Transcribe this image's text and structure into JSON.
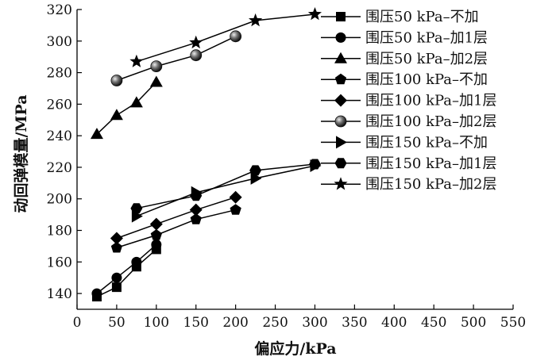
{
  "chart_data": {
    "type": "line",
    "title": "",
    "xlabel": "偏应力/kPa",
    "ylabel": "动回弹模量/MPa",
    "xlim": [
      0,
      550
    ],
    "ylim": [
      130,
      320
    ],
    "x_ticks": [
      0,
      50,
      100,
      150,
      200,
      250,
      300,
      350,
      400,
      450,
      500,
      550
    ],
    "y_ticks": [
      140,
      160,
      180,
      200,
      220,
      240,
      260,
      280,
      300,
      320
    ],
    "grid": false,
    "legend_position": "top-right",
    "series": [
      {
        "name": "围压50 kPa–不加",
        "marker": "square",
        "x": [
          25,
          50,
          75,
          100
        ],
        "y": [
          138,
          144,
          157,
          168
        ]
      },
      {
        "name": "围压50 kPa–加1层",
        "marker": "circle",
        "x": [
          25,
          50,
          75,
          100
        ],
        "y": [
          140,
          150,
          160,
          171
        ]
      },
      {
        "name": "围压50 kPa–加2层",
        "marker": "triangle-up",
        "x": [
          25,
          50,
          75,
          100
        ],
        "y": [
          241,
          253,
          261,
          274
        ]
      },
      {
        "name": "围压100 kPa–不加",
        "marker": "pentagon",
        "x": [
          50,
          100,
          150,
          200
        ],
        "y": [
          169,
          177,
          187,
          193
        ]
      },
      {
        "name": "围压100 kPa–加1层",
        "marker": "diamond",
        "x": [
          50,
          100,
          150,
          200
        ],
        "y": [
          175,
          184,
          193,
          201
        ]
      },
      {
        "name": "围压100 kPa–加2层",
        "marker": "sphere",
        "x": [
          50,
          100,
          150,
          200
        ],
        "y": [
          275,
          284,
          291,
          303
        ]
      },
      {
        "name": "围压150 kPa–不加",
        "marker": "triangle-right",
        "x": [
          75,
          150,
          225,
          300
        ],
        "y": [
          189,
          204,
          213,
          221
        ]
      },
      {
        "name": "围压150 kPa–加1层",
        "marker": "hexagon",
        "x": [
          75,
          150,
          225,
          300
        ],
        "y": [
          194,
          202,
          218,
          222
        ]
      },
      {
        "name": "围压150 kPa–加2层",
        "marker": "star",
        "x": [
          75,
          150,
          225,
          300
        ],
        "y": [
          287,
          299,
          313,
          317
        ]
      }
    ]
  }
}
